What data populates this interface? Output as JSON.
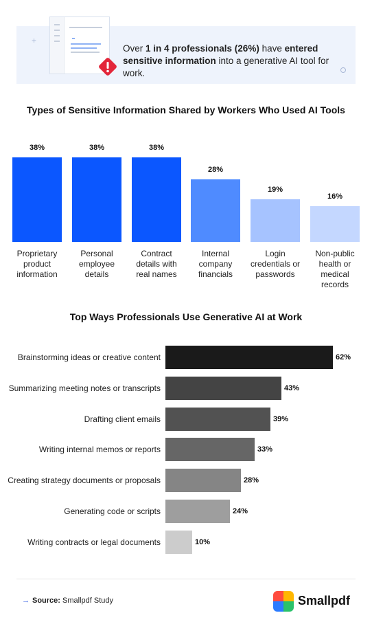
{
  "banner": {
    "text_pre": "Over ",
    "text_bold1": "1 in 4 professionals (26%)",
    "text_mid": " have ",
    "text_bold2": "entered sensitive information",
    "text_post": " into a generative AI tool for work.",
    "icon": "warning-icon",
    "icon_color": "#e3263a"
  },
  "chart_data": [
    {
      "type": "bar",
      "title": "Types of Sensitive Information Shared by Workers Who Used AI Tools",
      "categories": [
        [
          "Proprietary",
          "product",
          "information"
        ],
        [
          "Personal",
          "employee",
          "details"
        ],
        [
          "Contract",
          "details with",
          "real names"
        ],
        [
          "Internal",
          "company",
          "financials"
        ],
        [
          "Login",
          "credentials or",
          "passwords"
        ],
        [
          "Non-public",
          "health or",
          "medical",
          "records"
        ]
      ],
      "values": [
        38,
        38,
        38,
        28,
        19,
        16
      ],
      "value_labels": [
        "38%",
        "38%",
        "38%",
        "28%",
        "19%",
        "16%"
      ],
      "colors": [
        "#0b57ff",
        "#0b57ff",
        "#0b57ff",
        "#4f8bff",
        "#a6c3ff",
        "#c4d7ff"
      ],
      "ylim": [
        0,
        38
      ]
    },
    {
      "type": "bar",
      "orientation": "horizontal",
      "title": "Top Ways Professionals Use Generative AI at Work",
      "categories": [
        "Brainstorming ideas or creative content",
        "Summarizing meeting notes or transcripts",
        "Drafting client emails",
        "Writing internal memos or reports",
        "Creating strategy documents or proposals",
        "Generating code or scripts",
        "Writing contracts or legal documents"
      ],
      "values": [
        62,
        43,
        39,
        33,
        28,
        24,
        10
      ],
      "value_labels": [
        "62%",
        "43%",
        "39%",
        "33%",
        "28%",
        "24%",
        "10%"
      ],
      "colors": [
        "#1a1a1a",
        "#444444",
        "#525252",
        "#666666",
        "#858585",
        "#9e9e9e",
        "#cccccc"
      ],
      "xlim": [
        0,
        62
      ]
    }
  ],
  "footer": {
    "source_label": "Source:",
    "source_text": " Smallpdf Study",
    "arrow": "→",
    "logo_name": "Smallpdf",
    "logo_colors": [
      "#ff4b3e",
      "#ffb700",
      "#2b7bff",
      "#29c26a"
    ]
  }
}
